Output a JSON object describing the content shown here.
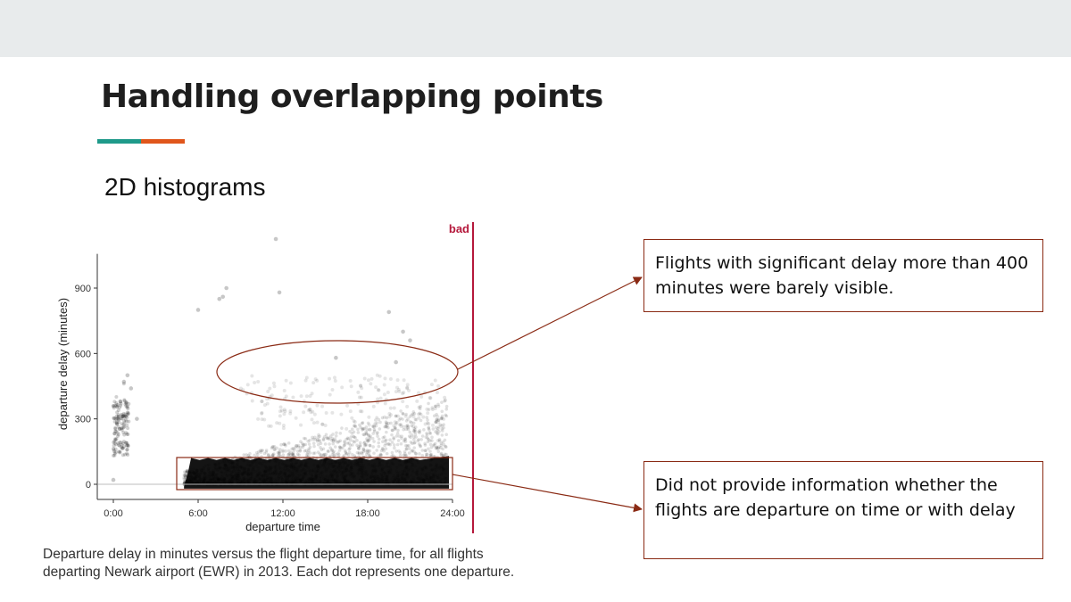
{
  "slide": {
    "title": "Handling overlapping points",
    "subtitle": "2D histograms",
    "accent_colors": [
      "#1f9a8a",
      "#e0561b"
    ]
  },
  "chart_data": {
    "type": "scatter",
    "xlabel": "departure time",
    "ylabel": "departure delay (minutes)",
    "x_ticks": [
      "0:00",
      "6:00",
      "12:00",
      "18:00",
      "24:00"
    ],
    "y_ticks": [
      "0",
      "300",
      "600",
      "900"
    ],
    "xlim": [
      "0:00",
      "24:00"
    ],
    "ylim": [
      -60,
      1200
    ],
    "badge": "bad",
    "badge_color": "#b5183b",
    "point_color": "#000000",
    "notable_points": [
      {
        "x": "0:00",
        "y": 20
      },
      {
        "x": "0:30",
        "y": 380
      },
      {
        "x": "0:45",
        "y": 470
      },
      {
        "x": "1:00",
        "y": 500
      },
      {
        "x": "1:15",
        "y": 440
      },
      {
        "x": "1:40",
        "y": 300
      },
      {
        "x": "6:00",
        "y": 800
      },
      {
        "x": "7:30",
        "y": 850
      },
      {
        "x": "7:45",
        "y": 860
      },
      {
        "x": "8:00",
        "y": 900
      },
      {
        "x": "11:30",
        "y": 1125
      },
      {
        "x": "11:45",
        "y": 880
      },
      {
        "x": "15:45",
        "y": 580
      },
      {
        "x": "19:30",
        "y": 790
      },
      {
        "x": "20:00",
        "y": 560
      },
      {
        "x": "20:30",
        "y": 700
      },
      {
        "x": "21:00",
        "y": 660
      }
    ],
    "dense_band": {
      "x_range": [
        "5:00",
        "23:45"
      ],
      "y_range": [
        -20,
        120
      ]
    }
  },
  "caption": "Departure delay in minutes versus the flight departure time, for all flights departing Newark airport (EWR) in 2013. Each dot represents one departure.",
  "callouts": [
    "Flights with significant delay more than 400 minutes were barely visible.",
    "Did not provide information whether the flights are departure on time or with delay"
  ],
  "annotation_color": "#8a2a14"
}
